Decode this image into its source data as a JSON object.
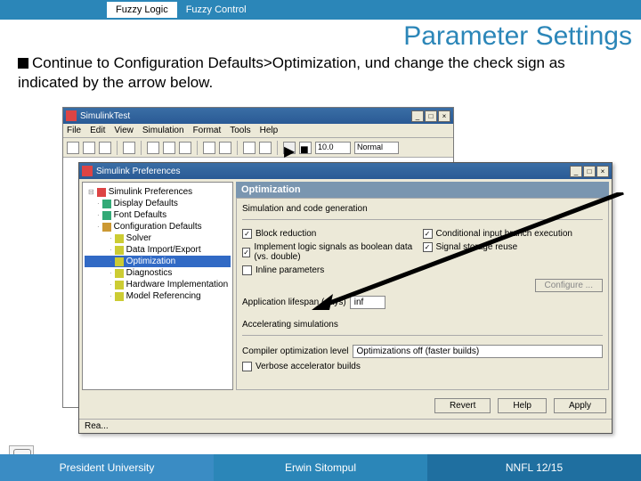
{
  "header": {
    "tab1": "Fuzzy Logic",
    "tab2": "Fuzzy Control",
    "bg": "#2b86b8"
  },
  "title": "Parameter Settings",
  "instruction": "Continue to Configuration Defaults>Optimization, und change the check sign as indicated by the arrow below.",
  "win1": {
    "title": "SimulinkTest",
    "menu": [
      "File",
      "Edit",
      "View",
      "Simulation",
      "Format",
      "Tools",
      "Help"
    ],
    "simtime": "10.0",
    "mode": "Normal"
  },
  "win2": {
    "title": "Simulink Preferences",
    "tree": {
      "root": "Simulink Preferences",
      "items": [
        {
          "label": "Display Defaults",
          "level": 1,
          "icon_color": "#3a7"
        },
        {
          "label": "Font Defaults",
          "level": 1,
          "icon_color": "#3a7"
        },
        {
          "label": "Configuration Defaults",
          "level": 1,
          "icon_color": "#c93",
          "expanded": true
        },
        {
          "label": "Solver",
          "level": 2,
          "icon_color": "#cc3"
        },
        {
          "label": "Data Import/Export",
          "level": 2,
          "icon_color": "#cc3"
        },
        {
          "label": "Optimization",
          "level": 2,
          "icon_color": "#cc3",
          "selected": true
        },
        {
          "label": "Diagnostics",
          "level": 2,
          "icon_color": "#cc3"
        },
        {
          "label": "Hardware Implementation",
          "level": 2,
          "icon_color": "#cc3"
        },
        {
          "label": "Model Referencing",
          "level": 2,
          "icon_color": "#cc3"
        }
      ]
    },
    "pane": {
      "title": "Optimization",
      "group1": "Simulation and code generation",
      "left_checks": [
        {
          "label": "Block reduction",
          "checked": true
        },
        {
          "label": "Implement logic signals as boolean data (vs. double)",
          "checked": true
        },
        {
          "label": "Inline parameters",
          "checked": false
        }
      ],
      "right_checks": [
        {
          "label": "Conditional input branch execution",
          "checked": true
        },
        {
          "label": "Signal storage reuse",
          "checked": true
        }
      ],
      "configure_btn": "Configure ...",
      "lifespan_label": "Application lifespan (days)",
      "lifespan_value": "inf",
      "group2": "Accelerating simulations",
      "compiler_label": "Compiler optimization level",
      "compiler_value": "Optimizations off (faster builds)",
      "verbose": {
        "label": "Verbose accelerator builds",
        "checked": false
      }
    },
    "buttons": {
      "revert": "Revert",
      "help": "Help",
      "apply": "Apply"
    },
    "status": "Rea..."
  },
  "footer": {
    "left": "President University",
    "center": "Erwin Sitompul",
    "right": "NNFL 12/15",
    "colors": [
      "#3a8cc4",
      "#2b86b8",
      "#1f6fa0"
    ]
  }
}
